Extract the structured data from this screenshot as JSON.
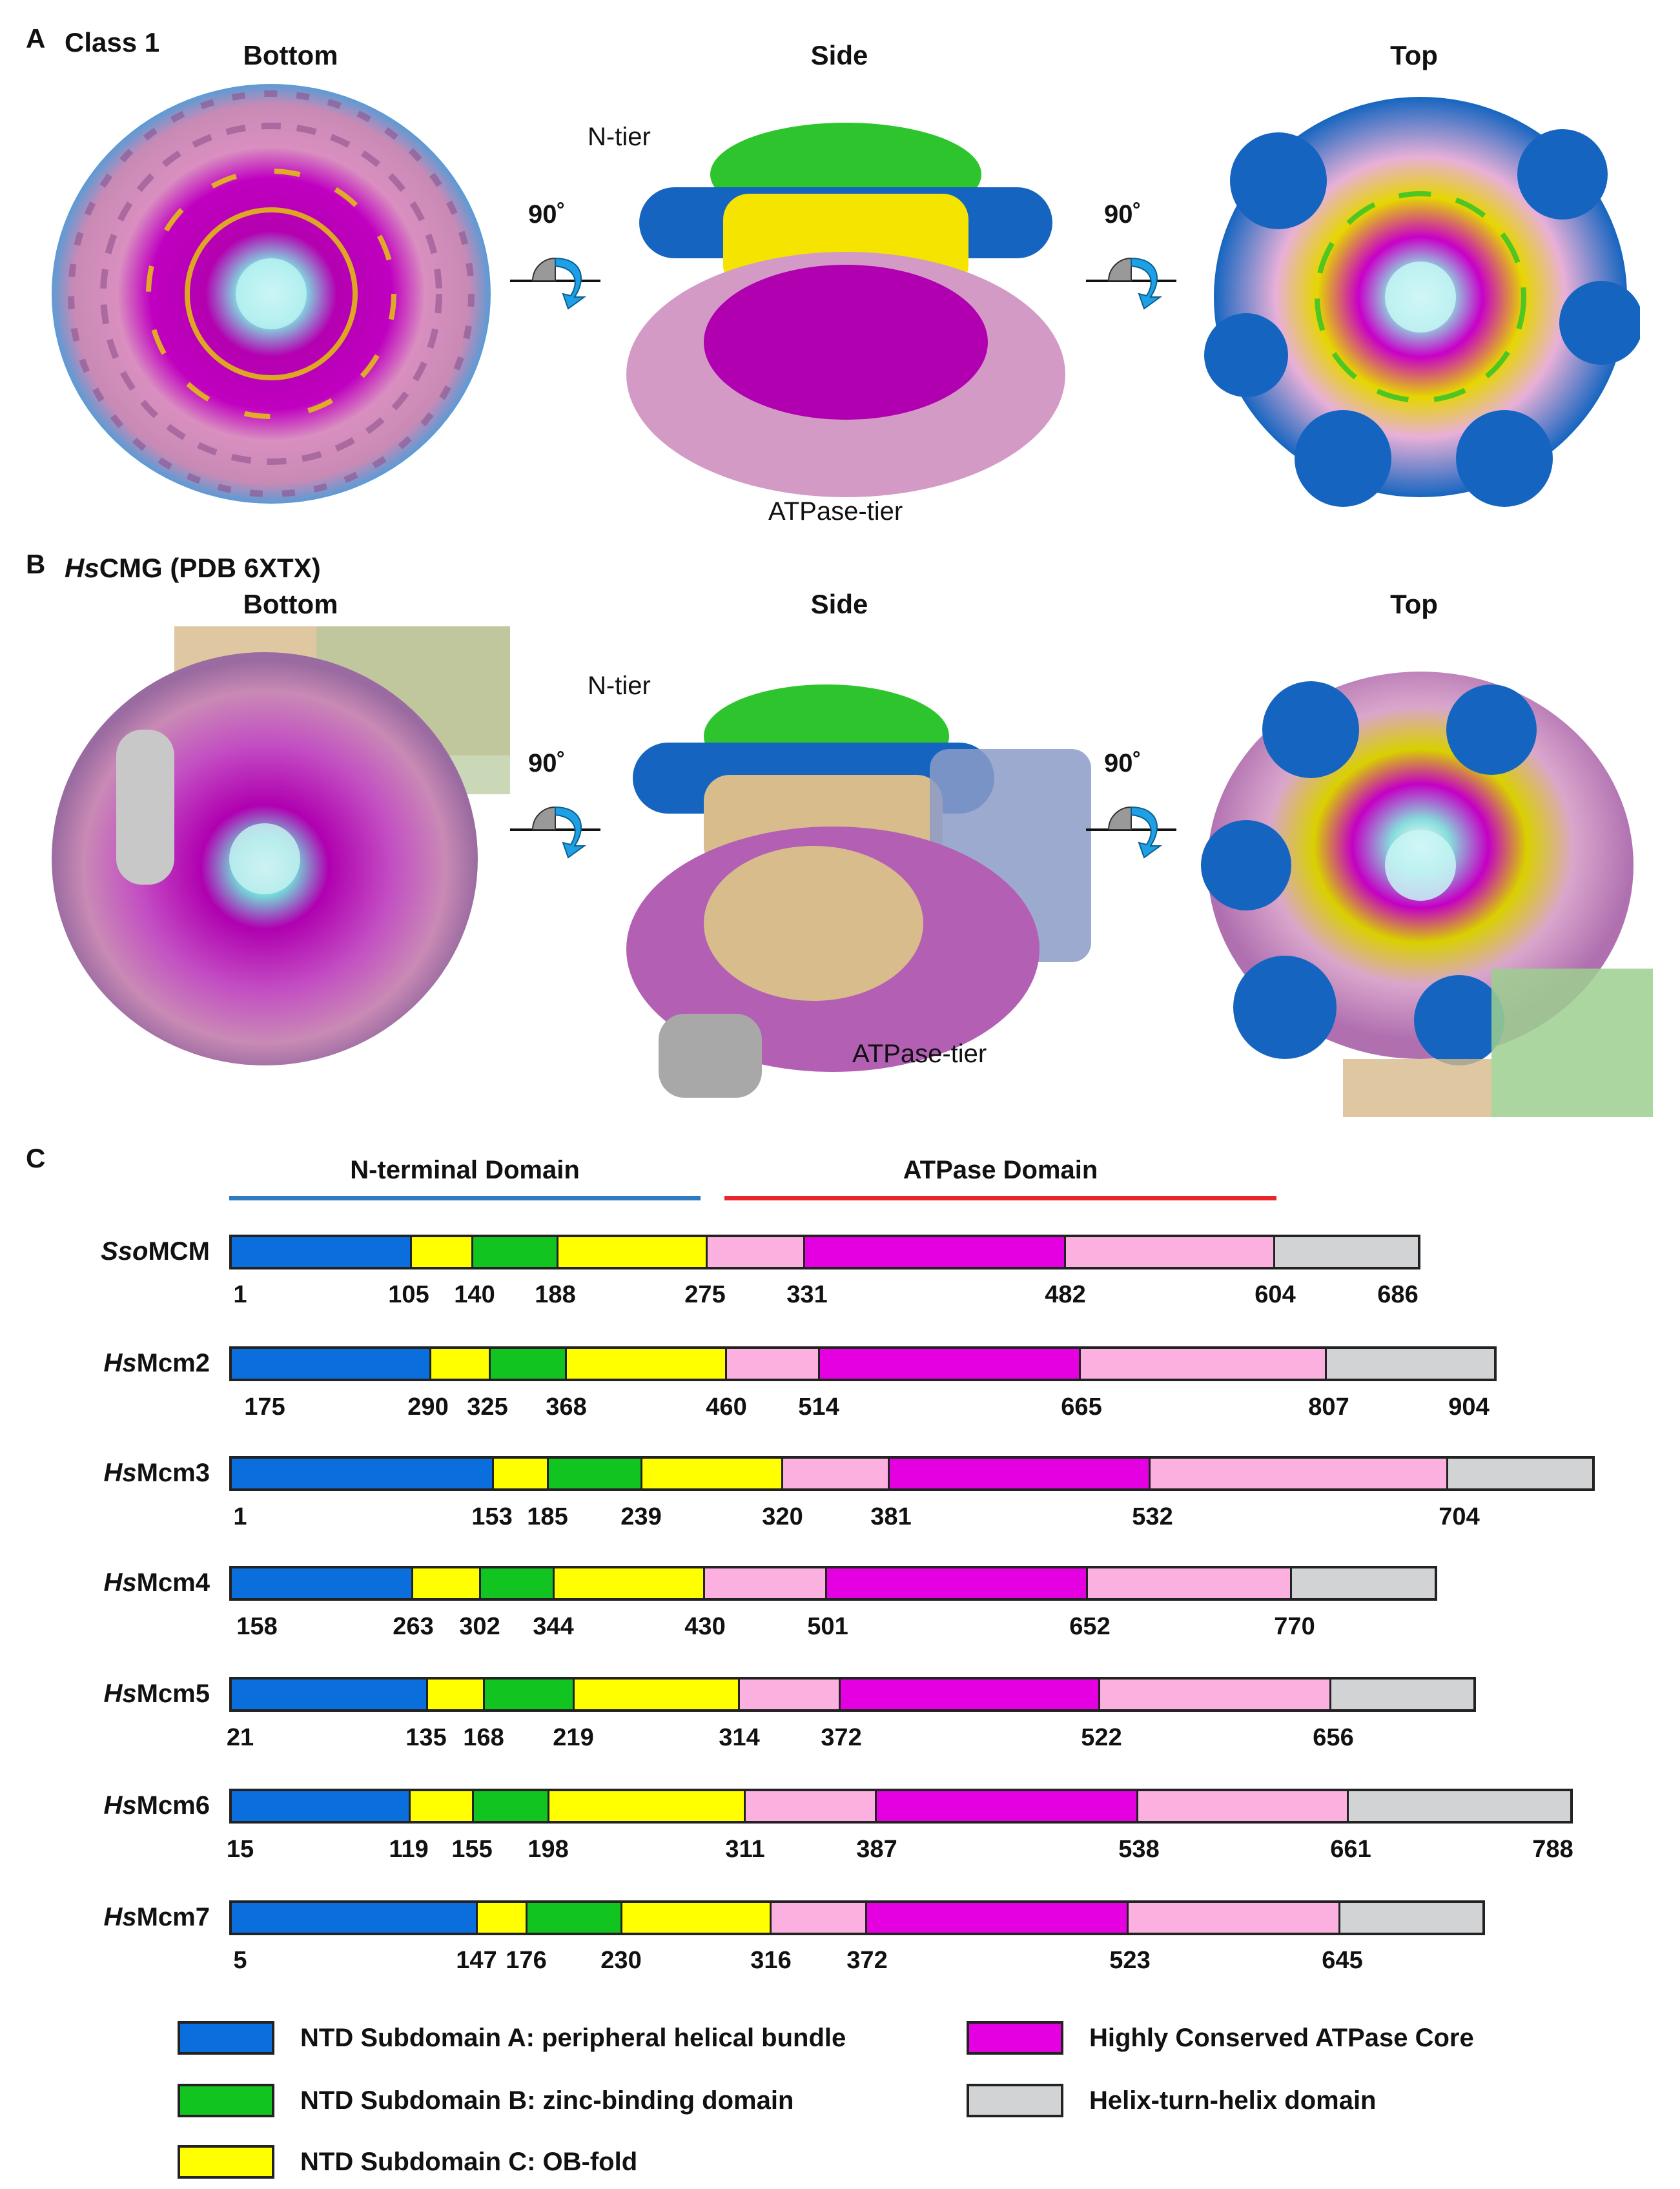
{
  "panel_a": {
    "letter": "A",
    "title": "Class 1",
    "views": {
      "bottom": "Bottom",
      "side": "Side",
      "top": "Top"
    },
    "n_tier": "N-tier",
    "atpase_tier": "ATPase-tier",
    "rotation": "90˚"
  },
  "panel_b": {
    "letter": "B",
    "title_italic": "Hs",
    "title_rest": "CMG (PDB 6XTX)",
    "views": {
      "bottom": "Bottom",
      "side": "Side",
      "top": "Top"
    },
    "n_tier": "N-tier",
    "atpase_tier": "ATPase-tier",
    "rotation": "90˚"
  },
  "panel_c": {
    "letter": "C",
    "domains": {
      "n_terminal": {
        "label": "N-terminal Domain",
        "color": "#2f7ac1"
      },
      "atpase": {
        "label": "ATPase Domain",
        "color": "#e8262b"
      }
    },
    "colors": {
      "A": "#0a6fdc",
      "C": "#ffff00",
      "B": "#11c41f",
      "pink": "#fbb0df",
      "magenta": "#e400e0",
      "gray": "#d2d3d5"
    },
    "proteins": [
      {
        "prefix": "Sso",
        "suffix": "MCM",
        "positions": [
          "1",
          "105",
          "140",
          "188",
          "275",
          "331",
          "482",
          "604",
          "686"
        ],
        "segments": [
          105,
          35,
          48,
          87,
          56,
          151,
          122,
          82
        ]
      },
      {
        "prefix": "Hs",
        "suffix": "Mcm2",
        "positions": [
          "175",
          "290",
          "325",
          "368",
          "460",
          "514",
          "665",
          "807",
          "904"
        ],
        "segments": [
          115,
          35,
          43,
          92,
          54,
          151,
          142,
          97
        ]
      },
      {
        "prefix": "Hs",
        "suffix": "Mcm3",
        "positions": [
          "1",
          "153",
          "185",
          "239",
          "320",
          "381",
          "532",
          "704"
        ],
        "segments": [
          153,
          32,
          54,
          81,
          61,
          151,
          172,
          84
        ]
      },
      {
        "prefix": "Hs",
        "suffix": "Mcm4",
        "positions": [
          "158",
          "263",
          "302",
          "344",
          "430",
          "501",
          "652",
          "770"
        ],
        "segments": [
          105,
          39,
          42,
          86,
          71,
          151,
          118,
          83
        ]
      },
      {
        "prefix": "Hs",
        "suffix": "Mcm5",
        "positions": [
          "21",
          "135",
          "168",
          "219",
          "314",
          "372",
          "522",
          "656"
        ],
        "segments": [
          114,
          33,
          51,
          95,
          58,
          150,
          134,
          82
        ]
      },
      {
        "prefix": "Hs",
        "suffix": "Mcm6",
        "positions": [
          "15",
          "119",
          "155",
          "198",
          "311",
          "387",
          "538",
          "661",
          "788"
        ],
        "segments": [
          104,
          36,
          43,
          113,
          76,
          151,
          123,
          127
        ]
      },
      {
        "prefix": "Hs",
        "suffix": "Mcm7",
        "positions": [
          "5",
          "147",
          "176",
          "230",
          "316",
          "372",
          "523",
          "645"
        ],
        "segments": [
          142,
          29,
          54,
          86,
          56,
          151,
          122,
          82
        ]
      }
    ],
    "legend": [
      {
        "label": "NTD Subdomain A:  peripheral helical bundle",
        "color": "#0a6fdc"
      },
      {
        "label": "NTD Subdomain B:  zinc-binding domain",
        "color": "#11c41f"
      },
      {
        "label": "NTD Subdomain C:  OB-fold",
        "color": "#ffff00"
      },
      {
        "label": "Highly Conserved ATPase Core",
        "color": "#e400e0"
      },
      {
        "label": "Helix-turn-helix domain",
        "color": "#d2d3d5"
      }
    ]
  }
}
